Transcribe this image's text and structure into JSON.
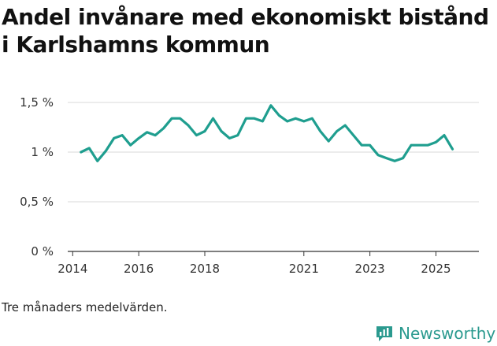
{
  "chart_data": {
    "type": "line",
    "title": "Andel invånare med ekonomiskt bistånd i Karlshamns kommun",
    "xlabel": "",
    "ylabel": "",
    "ylim": [
      0,
      1.5
    ],
    "yticks": [
      0,
      0.5,
      1,
      1.5
    ],
    "ytick_labels": [
      "0 %",
      "0,5 %",
      "1 %",
      "1,5 %"
    ],
    "xticks": [
      2014,
      2016,
      2018,
      2021,
      2023,
      2025
    ],
    "xtick_labels": [
      "2014",
      "2016",
      "2018",
      "2021",
      "2023",
      "2025"
    ],
    "x_range": [
      2013.85,
      2026.3
    ],
    "grid": true,
    "line_color": "#1f9e8f",
    "series": [
      {
        "name": "Andel invånare med ekonomiskt bistånd",
        "x": [
          2014.25,
          2014.5,
          2014.75,
          2015.0,
          2015.25,
          2015.5,
          2015.75,
          2016.0,
          2016.25,
          2016.5,
          2016.75,
          2017.0,
          2017.25,
          2017.5,
          2017.75,
          2018.0,
          2018.25,
          2018.5,
          2018.75,
          2019.0,
          2019.25,
          2019.5,
          2019.75,
          2020.0,
          2020.25,
          2020.5,
          2020.75,
          2021.0,
          2021.25,
          2021.5,
          2021.75,
          2022.0,
          2022.25,
          2022.5,
          2022.75,
          2023.0,
          2023.25,
          2023.5,
          2023.75,
          2024.0,
          2024.25,
          2024.5,
          2024.75,
          2025.0,
          2025.25,
          2025.5
        ],
        "values": [
          1.0,
          1.04,
          0.91,
          1.01,
          1.14,
          1.17,
          1.07,
          1.14,
          1.2,
          1.17,
          1.24,
          1.34,
          1.34,
          1.27,
          1.17,
          1.21,
          1.34,
          1.21,
          1.14,
          1.17,
          1.34,
          1.34,
          1.31,
          1.47,
          1.37,
          1.31,
          1.34,
          1.31,
          1.34,
          1.21,
          1.11,
          1.21,
          1.27,
          1.17,
          1.07,
          1.07,
          0.97,
          0.94,
          0.91,
          0.94,
          1.07,
          1.07,
          1.07,
          1.1,
          1.17,
          1.03
        ]
      }
    ]
  },
  "note": "Tre månaders medelvärden.",
  "brand": {
    "name": "Newsworthy",
    "color": "#2b9a8f"
  }
}
